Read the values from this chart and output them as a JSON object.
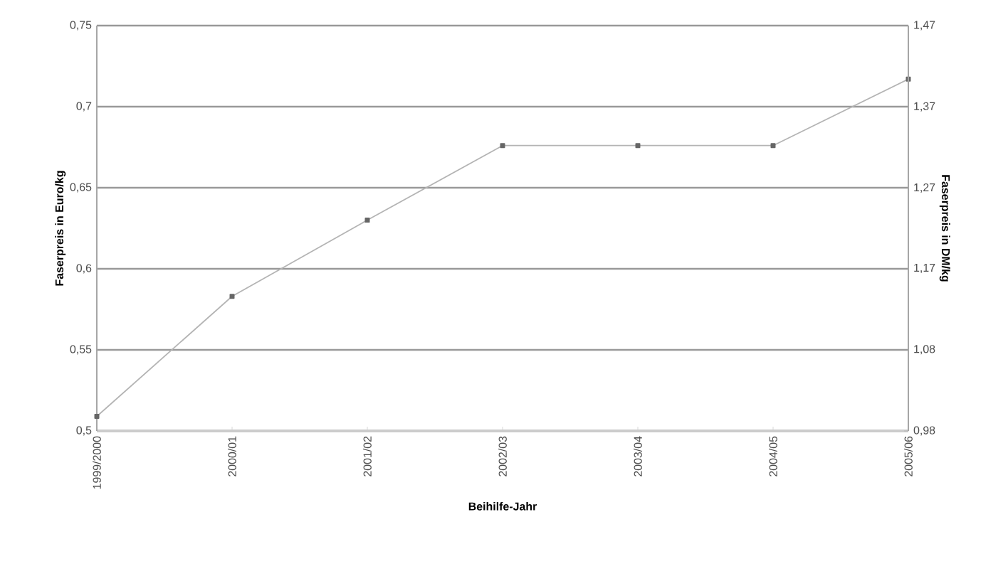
{
  "chart_data": {
    "type": "line",
    "xlabel": "Beihilfe-Jahr",
    "ylabel": "Faserpreis in Euro/kg",
    "y2label": "Faserpreis in DM/kg",
    "categories": [
      "1999/2000",
      "2000/01",
      "2001/02",
      "2002/03",
      "2003/04",
      "2004/05",
      "2005/06"
    ],
    "series": [
      {
        "color": "#b4b4b4",
        "values": [
          0.509,
          0.583,
          0.63,
          0.676,
          0.676,
          0.676,
          0.717
        ]
      }
    ],
    "ylim": [
      0.5,
      0.75
    ],
    "yticks": [
      {
        "value": 0.5,
        "label": "0,5"
      },
      {
        "value": 0.55,
        "label": "0,55"
      },
      {
        "value": 0.6,
        "label": "0,6"
      },
      {
        "value": 0.65,
        "label": "0,65"
      },
      {
        "value": 0.7,
        "label": "0,7"
      },
      {
        "value": 0.75,
        "label": "0,75"
      }
    ],
    "y2lim": [
      0.978,
      1.467
    ],
    "y2ticks": [
      {
        "value": 0.978,
        "label": "0,98"
      },
      {
        "value": 1.076,
        "label": "1,08"
      },
      {
        "value": 1.174,
        "label": "1,17"
      },
      {
        "value": 1.271,
        "label": "1,27"
      },
      {
        "value": 1.369,
        "label": "1,37"
      },
      {
        "value": 1.467,
        "label": "1,47"
      }
    ],
    "grid": "y",
    "marker": "square",
    "line_style": "solid"
  }
}
